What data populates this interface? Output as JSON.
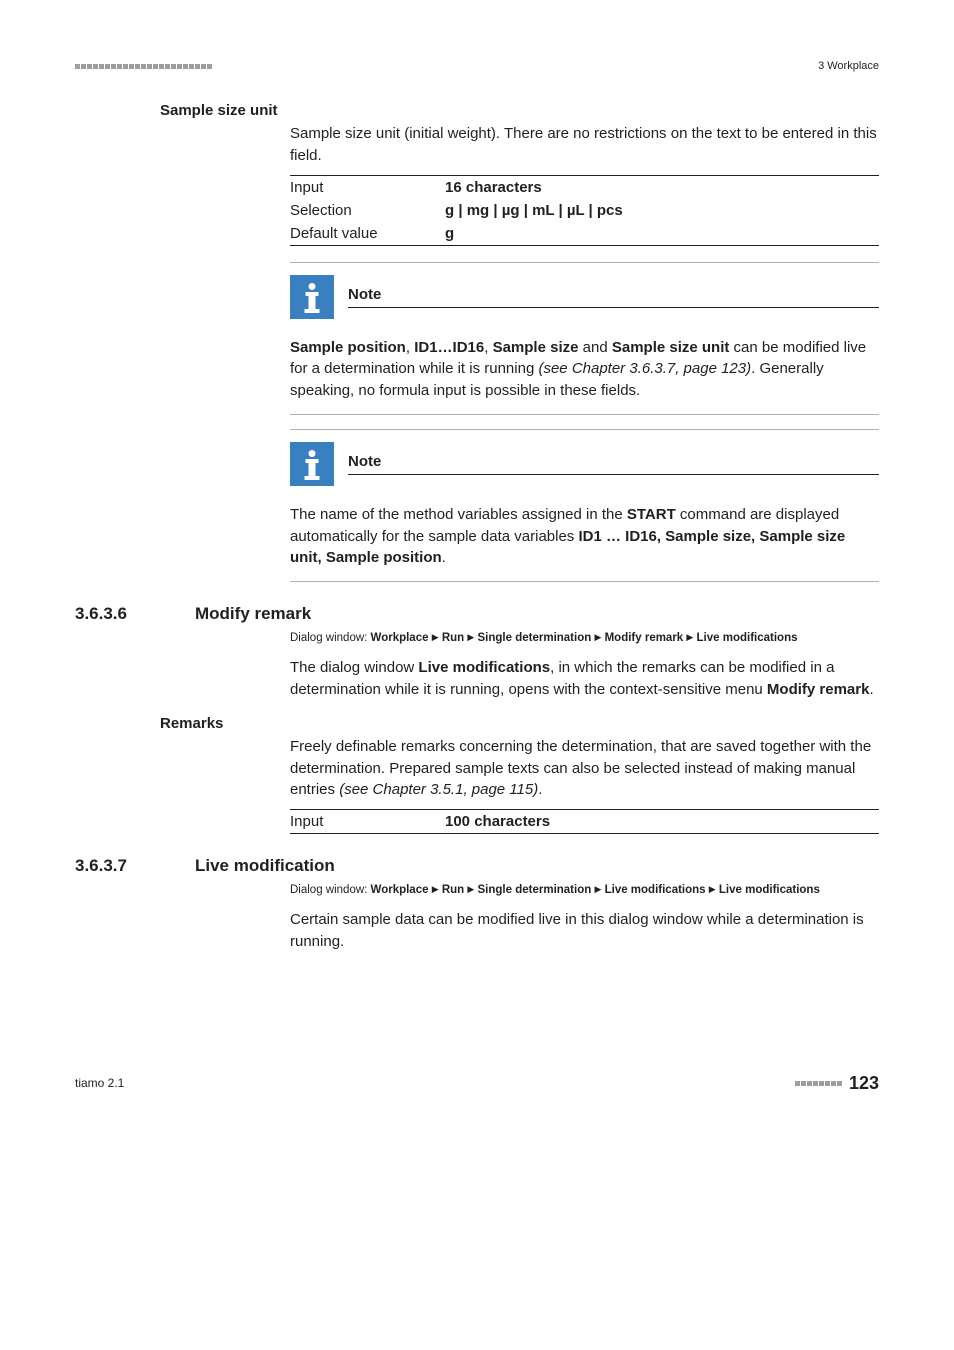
{
  "header": {
    "section_label": "3 Workplace"
  },
  "sample_size_unit": {
    "heading": "Sample size unit",
    "description": "Sample size unit (initial weight). There are no restrictions on the text to be entered in this field.",
    "rows": {
      "input_label": "Input",
      "input_value": "16 characters",
      "selection_label": "Selection",
      "selection_value": "g | mg | µg | mL | µL | pcs",
      "default_label": "Default value",
      "default_value": "g"
    }
  },
  "note1": {
    "label": "Note",
    "prefix_bold_1": "Sample position",
    "sep1": ", ",
    "prefix_bold_2": "ID1…ID16",
    "sep2": ", ",
    "prefix_bold_3": "Sample size",
    "and": " and ",
    "prefix_bold_4": "Sample size unit",
    "tail1": " can be modified live for a determination while it is running ",
    "ref": "(see Chapter 3.6.3.7, page 123)",
    "tail2": ". Generally speaking, no formula input is possible in these fields."
  },
  "note2": {
    "label": "Note",
    "lead": "The name of the method variables assigned in the ",
    "start_bold": "START",
    "mid": " command are displayed automatically for the sample data variables ",
    "vars_bold": "ID1 … ID16, Sample size, Sample size unit, Sample position",
    "end": "."
  },
  "section_modify": {
    "num": "3.6.3.6",
    "title": "Modify remark",
    "dialog_prefix": "Dialog window: ",
    "dialog_parts": [
      "Workplace",
      "Run",
      "Single determination",
      "Modify remark",
      "Live modifications"
    ],
    "para_lead": "The dialog window ",
    "para_bold": "Live modifications",
    "para_mid": ", in which the remarks can be modified in a determination while it is running, opens with the context-sensitive menu ",
    "para_bold2": "Modify remark",
    "para_end": "."
  },
  "remarks": {
    "heading": "Remarks",
    "body_lead": "Freely definable remarks concerning the determination, that are saved together with the determination. Prepared sample texts can also be selected instead of making manual entries ",
    "body_ref": "(see Chapter 3.5.1, page 115)",
    "body_end": ".",
    "input_label": "Input",
    "input_value": "100 characters"
  },
  "section_live": {
    "num": "3.6.3.7",
    "title": "Live modification",
    "dialog_prefix": "Dialog window: ",
    "dialog_parts": [
      "Workplace",
      "Run",
      "Single determination",
      "Live modifications",
      "Live modifications"
    ],
    "body": "Certain sample data can be modified live in this dialog window while a determination is running."
  },
  "footer": {
    "product": "tiamo 2.1",
    "page": "123"
  },
  "colors": {
    "note_icon_bg": "#3a7fbf",
    "dash_gray": "#9e9e9e",
    "text": "#231f20"
  }
}
